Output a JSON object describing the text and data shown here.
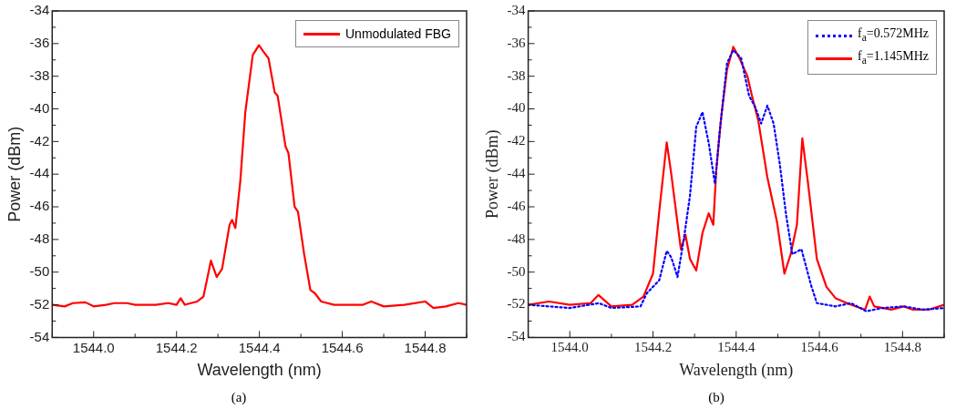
{
  "chart_data": [
    {
      "type": "line",
      "xlabel": "Wavelength (nm)",
      "ylabel": "Power (dBm)",
      "legend": "top right",
      "marker": "none",
      "grid": false,
      "xlim": [
        1543.9,
        1544.9
      ],
      "ylim": [
        -54,
        -34
      ],
      "xticks": [
        {
          "value": 1544.0,
          "label": "1544.0"
        },
        {
          "value": 1544.2,
          "label": "1544.2"
        },
        {
          "value": 1544.4,
          "label": "1544.4"
        },
        {
          "value": 1544.6,
          "label": "1544.6"
        },
        {
          "value": 1544.8,
          "label": "1544.8"
        }
      ],
      "yticks": [
        -54,
        -52,
        -50,
        -48,
        -46,
        -44,
        -42,
        -40,
        -38,
        -36,
        -34
      ],
      "annotations": [
        "(a)"
      ],
      "series": [
        {
          "name": "Unmodulated FBG",
          "color": "#ff0000",
          "line_style": "solid",
          "x": [
            1543.9,
            1543.93,
            1543.95,
            1543.98,
            1544.0,
            1544.03,
            1544.05,
            1544.08,
            1544.1,
            1544.13,
            1544.15,
            1544.18,
            1544.2,
            1544.21,
            1544.22,
            1544.25,
            1544.265,
            1544.283,
            1544.297,
            1544.31,
            1544.328,
            1544.334,
            1544.342,
            1544.354,
            1544.366,
            1544.384,
            1544.399,
            1544.41,
            1544.422,
            1544.437,
            1544.444,
            1544.463,
            1544.47,
            1544.485,
            1544.493,
            1544.508,
            1544.523,
            1544.534,
            1544.549,
            1544.58,
            1544.6,
            1544.65,
            1544.67,
            1544.7,
            1544.75,
            1544.8,
            1544.82,
            1544.85,
            1544.88,
            1544.9
          ],
          "values": [
            -52.0,
            -52.1,
            -51.9,
            -51.85,
            -52.1,
            -52.0,
            -51.9,
            -51.9,
            -52.0,
            -52.0,
            -52.0,
            -51.9,
            -52.0,
            -51.6,
            -52.0,
            -51.8,
            -51.5,
            -49.3,
            -50.3,
            -49.8,
            -47.1,
            -46.8,
            -47.3,
            -44.4,
            -40.2,
            -36.7,
            -36.1,
            -36.5,
            -36.9,
            -39.0,
            -39.2,
            -42.3,
            -42.7,
            -46.0,
            -46.3,
            -48.9,
            -51.1,
            -51.3,
            -51.8,
            -52.0,
            -52.0,
            -52.0,
            -51.8,
            -52.1,
            -52.0,
            -51.8,
            -52.2,
            -52.1,
            -51.9,
            -52.0
          ]
        }
      ]
    },
    {
      "type": "line",
      "xlabel": "Wavelength (nm)",
      "ylabel": "Power (dBm)",
      "legend": "top right",
      "marker": "none",
      "grid": false,
      "xlim": [
        1543.9,
        1544.9
      ],
      "ylim": [
        -54,
        -34
      ],
      "xticks": [
        {
          "value": 1544.0,
          "label": "1544.0"
        },
        {
          "value": 1544.2,
          "label": "1544.2"
        },
        {
          "value": 1544.4,
          "label": "1544.4"
        },
        {
          "value": 1544.6,
          "label": "1544.6"
        },
        {
          "value": 1544.8,
          "label": "1544.8"
        }
      ],
      "yticks": [
        -54,
        -52,
        -50,
        -48,
        -46,
        -44,
        -42,
        -40,
        -38,
        -36,
        -34
      ],
      "annotations": [
        "(b)"
      ],
      "series": [
        {
          "name": "f$_{a}$=0.572MHz",
          "color": "#0000ff",
          "line_style": "dotted",
          "x": [
            1543.9,
            1544.0,
            1544.07,
            1544.1,
            1544.17,
            1544.185,
            1544.215,
            1544.233,
            1544.244,
            1544.259,
            1544.274,
            1544.289,
            1544.304,
            1544.319,
            1544.334,
            1544.349,
            1544.36,
            1544.378,
            1544.393,
            1544.412,
            1544.431,
            1544.446,
            1544.46,
            1544.475,
            1544.49,
            1544.505,
            1544.52,
            1544.535,
            1544.557,
            1544.58,
            1544.594,
            1544.639,
            1544.676,
            1544.713,
            1544.751,
            1544.803,
            1544.848,
            1544.9
          ],
          "values": [
            -52.0,
            -52.2,
            -51.9,
            -52.2,
            -52.1,
            -51.3,
            -50.5,
            -48.7,
            -49.1,
            -50.3,
            -48.0,
            -45.3,
            -41.1,
            -40.2,
            -42.1,
            -44.6,
            -41.5,
            -37.2,
            -36.4,
            -36.9,
            -39.2,
            -39.9,
            -40.9,
            -39.8,
            -40.9,
            -43.4,
            -46.5,
            -48.9,
            -48.6,
            -50.8,
            -51.9,
            -52.1,
            -51.9,
            -52.4,
            -52.2,
            -52.1,
            -52.3,
            -52.2
          ]
        },
        {
          "name": "f$_{a}$=1.145MHz",
          "color": "#ff0000",
          "line_style": "solid",
          "x": [
            1543.9,
            1543.95,
            1544.0,
            1544.05,
            1544.069,
            1544.1,
            1544.15,
            1544.177,
            1544.2,
            1544.215,
            1544.233,
            1544.244,
            1544.267,
            1544.278,
            1544.289,
            1544.304,
            1544.319,
            1544.334,
            1544.345,
            1544.352,
            1544.364,
            1544.378,
            1544.393,
            1544.408,
            1544.427,
            1544.438,
            1544.453,
            1544.475,
            1544.498,
            1544.516,
            1544.531,
            1544.546,
            1544.559,
            1544.572,
            1544.594,
            1544.617,
            1544.639,
            1544.676,
            1544.71,
            1544.721,
            1544.732,
            1544.773,
            1544.803,
            1544.825,
            1544.863,
            1544.9
          ],
          "values": [
            -52.0,
            -51.8,
            -52.0,
            -51.9,
            -51.4,
            -52.1,
            -52.0,
            -51.5,
            -50.1,
            -46.3,
            -42.05,
            -44.0,
            -48.6,
            -47.7,
            -49.2,
            -49.9,
            -47.6,
            -46.4,
            -47.1,
            -43.8,
            -40.5,
            -37.6,
            -36.2,
            -36.9,
            -38.0,
            -39.2,
            -40.7,
            -44.2,
            -46.9,
            -50.1,
            -48.9,
            -47.1,
            -41.8,
            -44.4,
            -49.2,
            -50.9,
            -51.6,
            -52.0,
            -52.3,
            -51.5,
            -52.1,
            -52.3,
            -52.1,
            -52.3,
            -52.3,
            -52.0
          ]
        }
      ]
    }
  ]
}
